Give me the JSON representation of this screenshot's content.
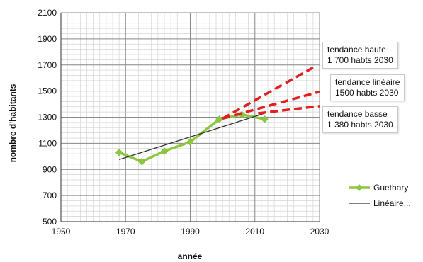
{
  "chart_data": {
    "type": "line",
    "xlabel": "année",
    "ylabel": "nombre d'habitants",
    "xlim": [
      1950,
      2030
    ],
    "ylim": [
      500,
      2100
    ],
    "xticks": [
      1950,
      1970,
      1990,
      2010,
      2030
    ],
    "yticks": [
      500,
      700,
      900,
      1100,
      1300,
      1500,
      1700,
      1900,
      2100
    ],
    "grid": true,
    "legend_position": "right",
    "series": [
      {
        "name": "Guethary",
        "color": "#8dc63f",
        "marker": "diamond",
        "x": [
          1968,
          1975,
          1982,
          1990,
          1999,
          2006,
          2013
        ],
        "y": [
          1030,
          960,
          1040,
          1110,
          1285,
          1320,
          1285
        ]
      },
      {
        "name": "Linéaire...",
        "color": "#333333",
        "style": "solid",
        "x": [
          1968,
          2013
        ],
        "y": [
          975,
          1330
        ]
      }
    ],
    "projections": [
      {
        "label": "tendance haute",
        "value_label": "1 700 habts 2030",
        "color": "#e02020",
        "style": "dashed",
        "x": [
          2000,
          2028
        ],
        "y": [
          1290,
          1680
        ]
      },
      {
        "label": "tendance linéaire",
        "value_label": "1500 habts 2030",
        "color": "#e02020",
        "style": "dashed",
        "x": [
          2000,
          2030
        ],
        "y": [
          1290,
          1495
        ]
      },
      {
        "label": "tendance basse",
        "value_label": "1 380 habts 2030",
        "color": "#e02020",
        "style": "dashed",
        "x": [
          2011,
          2030
        ],
        "y": [
          1330,
          1385
        ]
      }
    ]
  }
}
